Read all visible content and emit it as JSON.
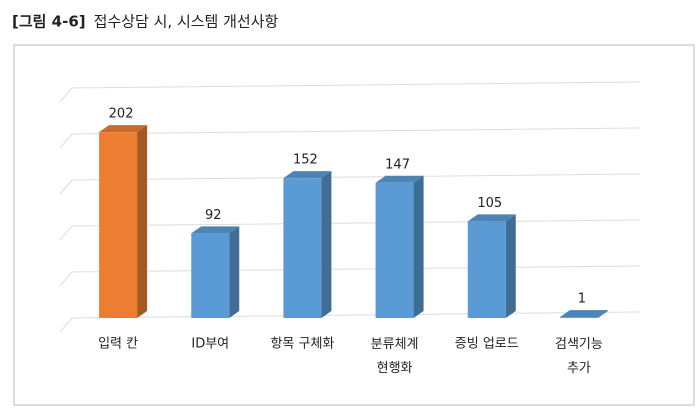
{
  "chart_data": {
    "type": "bar3d",
    "figure_label": "[그림 4-6]",
    "title": "접수상담 시, 시스템 개선사항",
    "categories": [
      "입력 칸",
      "ID부여",
      "항목 구체화",
      "분류체계\n현행화",
      "증빙 업로드",
      "검색기능\n추가"
    ],
    "values": [
      202,
      92,
      152,
      147,
      105,
      1
    ],
    "colors": [
      "#ed7d31",
      "#5b9bd5",
      "#5b9bd5",
      "#5b9bd5",
      "#5b9bd5",
      "#5b9bd5"
    ],
    "ylim": [
      0,
      250
    ],
    "grid": true
  }
}
